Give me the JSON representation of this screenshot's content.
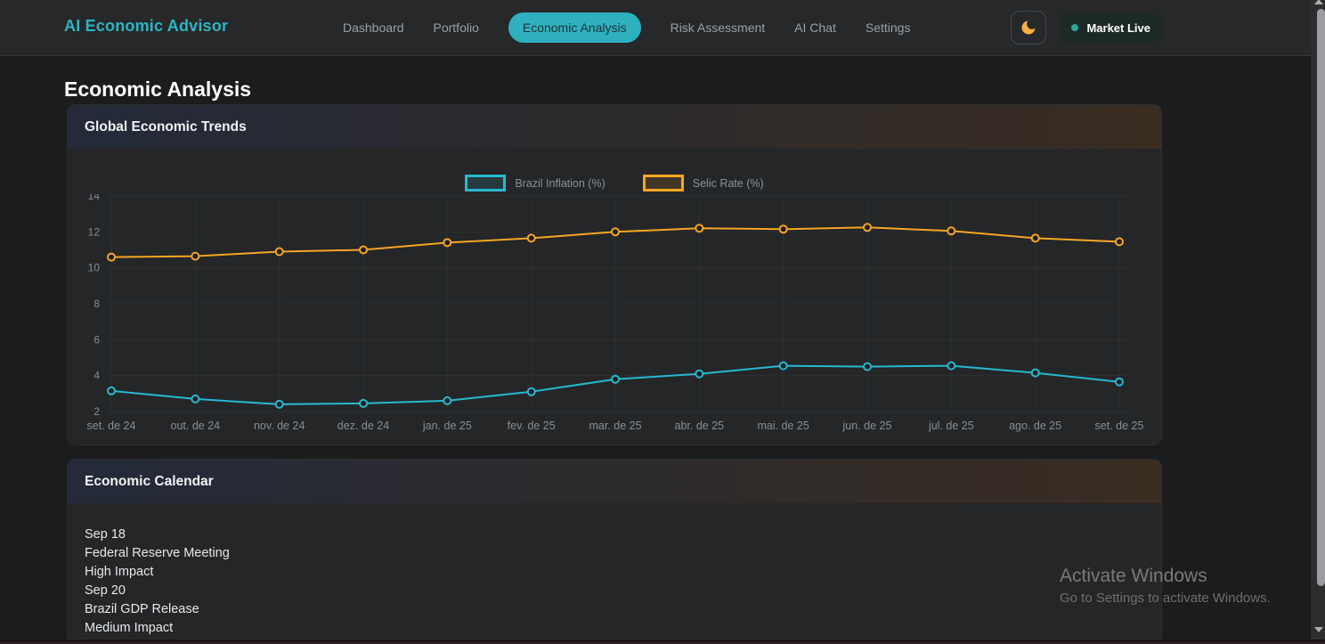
{
  "header": {
    "logo": "AI Economic Advisor",
    "nav": [
      {
        "label": "Dashboard",
        "active": false
      },
      {
        "label": "Portfolio",
        "active": false
      },
      {
        "label": "Economic Analysis",
        "active": true
      },
      {
        "label": "Risk Assessment",
        "active": false
      },
      {
        "label": "AI Chat",
        "active": false
      },
      {
        "label": "Settings",
        "active": false
      }
    ],
    "theme_icon": "moon-icon",
    "market_status": {
      "label": "Market Live",
      "dot_color": "#2aa596",
      "background": "#1c2a24"
    }
  },
  "page": {
    "title": "Economic Analysis"
  },
  "cards": [
    {
      "title": "Global Economic Trends"
    },
    {
      "title": "Economic Calendar"
    }
  ],
  "chart_data": {
    "type": "line",
    "title": "Global Economic Trends",
    "x": [
      "set. de 24",
      "out. de 24",
      "nov. de 24",
      "dez. de 24",
      "jan. de 25",
      "fev. de 25",
      "mar. de 25",
      "abr. de 25",
      "mai. de 25",
      "jun. de 25",
      "jul. de 25",
      "ago. de 25",
      "set. de 25"
    ],
    "series": [
      {
        "name": "Brazil Inflation (%)",
        "color": "#27b9cf",
        "values": [
          3.15,
          2.7,
          2.4,
          2.45,
          2.6,
          3.1,
          3.8,
          4.1,
          4.55,
          4.5,
          4.55,
          4.15,
          3.65
        ]
      },
      {
        "name": "Selic Rate (%)",
        "color": "#f6a623",
        "values": [
          10.6,
          10.65,
          10.9,
          11.0,
          11.4,
          11.65,
          12.0,
          12.2,
          12.15,
          12.25,
          12.05,
          11.65,
          11.45
        ]
      }
    ],
    "ylim": [
      2,
      14
    ],
    "yticks": [
      2,
      4,
      6,
      8,
      10,
      12,
      14
    ],
    "xlabel": "",
    "ylabel": "",
    "grid": true,
    "legend_position": "top"
  },
  "calendar": {
    "events": [
      {
        "date": "Sep 18",
        "title": "Federal Reserve Meeting",
        "impact": "High Impact"
      },
      {
        "date": "Sep 20",
        "title": "Brazil GDP Release",
        "impact": "Medium Impact"
      }
    ]
  },
  "watermark": {
    "line1": "Activate Windows",
    "line2": "Go to Settings to activate Windows."
  },
  "colors": {
    "accent_teal": "#2cb5c4",
    "active_tab_bg": "#2eb0bf",
    "inflation_line": "#27b9cf",
    "selic_line": "#f6a623",
    "page_bg": "#1b1c1e",
    "card_bg": "#242628"
  }
}
